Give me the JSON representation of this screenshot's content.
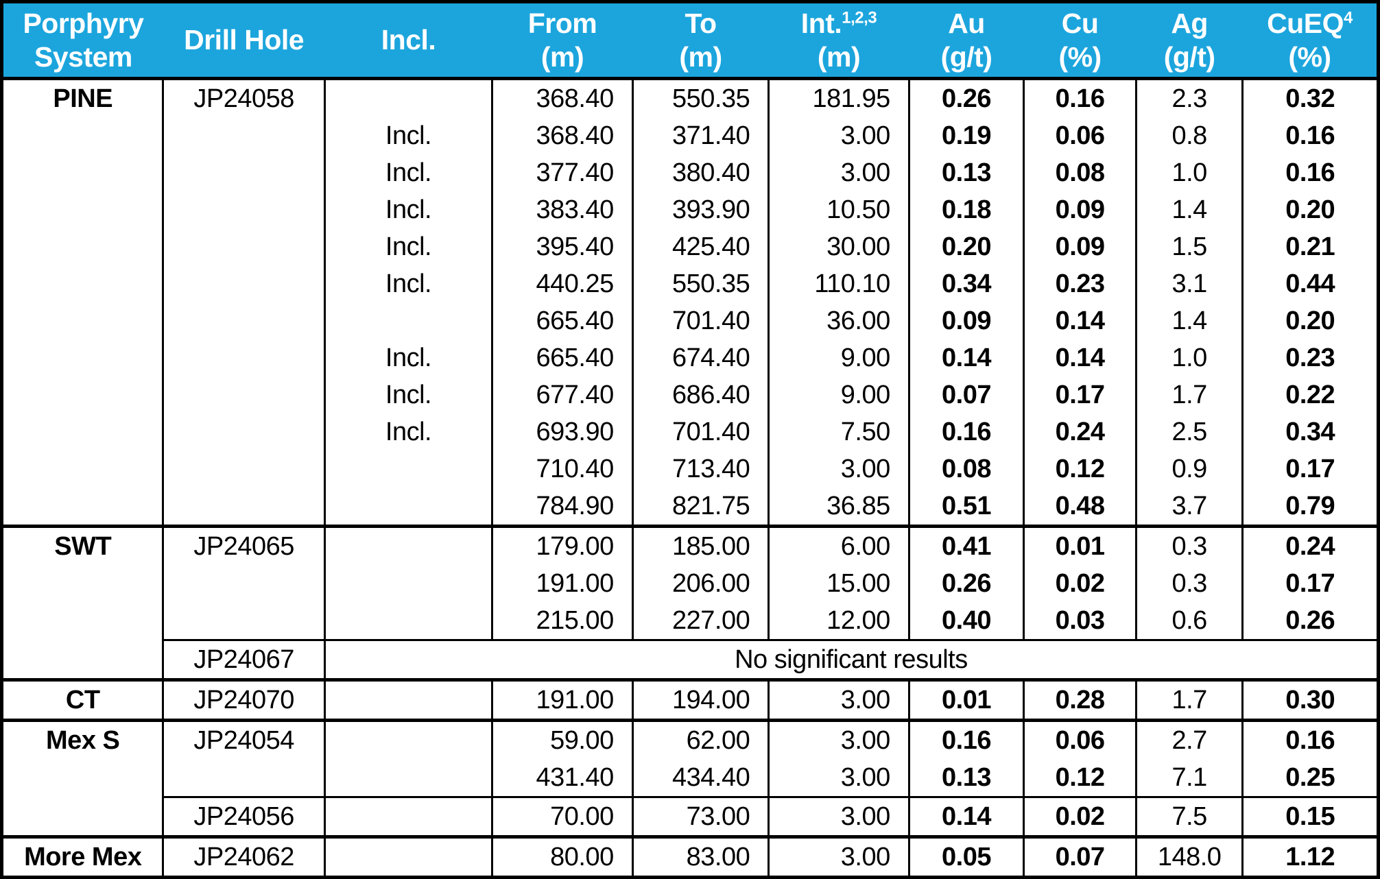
{
  "colors": {
    "header_bg": "#1CA5DD",
    "header_text": "#FFFFFF",
    "border": "#000000",
    "body_bg": "#FFFFFF",
    "body_text": "#000000"
  },
  "table": {
    "header": {
      "columns": [
        {
          "key": "system",
          "line1": "Porphyry",
          "line2": "System"
        },
        {
          "key": "hole",
          "line1": "Drill Hole"
        },
        {
          "key": "incl",
          "line1": "Incl."
        },
        {
          "key": "from",
          "line1": "From",
          "line2": "(m)"
        },
        {
          "key": "to",
          "line1": "To",
          "line2": "(m)"
        },
        {
          "key": "int",
          "line1": "Int.",
          "sup": "1,2,3",
          "line2": "(m)"
        },
        {
          "key": "au",
          "line1": "Au",
          "line2": "(g/t)"
        },
        {
          "key": "cu",
          "line1": "Cu",
          "line2": "(%)"
        },
        {
          "key": "ag",
          "line1": "Ag",
          "line2": "(g/t)"
        },
        {
          "key": "cueq",
          "line1": "CuEQ",
          "sup": "4",
          "line2": "(%)"
        }
      ]
    },
    "sections": [
      {
        "system": "PINE",
        "holes": [
          {
            "hole": "JP24058",
            "intervals": [
              {
                "incl": "",
                "from": "368.40",
                "to": "550.35",
                "int": "181.95",
                "au": "0.26",
                "cu": "0.16",
                "ag": "2.3",
                "cueq": "0.32"
              },
              {
                "incl": "Incl.",
                "from": "368.40",
                "to": "371.40",
                "int": "3.00",
                "au": "0.19",
                "cu": "0.06",
                "ag": "0.8",
                "cueq": "0.16"
              },
              {
                "incl": "Incl.",
                "from": "377.40",
                "to": "380.40",
                "int": "3.00",
                "au": "0.13",
                "cu": "0.08",
                "ag": "1.0",
                "cueq": "0.16"
              },
              {
                "incl": "Incl.",
                "from": "383.40",
                "to": "393.90",
                "int": "10.50",
                "au": "0.18",
                "cu": "0.09",
                "ag": "1.4",
                "cueq": "0.20"
              },
              {
                "incl": "Incl.",
                "from": "395.40",
                "to": "425.40",
                "int": "30.00",
                "au": "0.20",
                "cu": "0.09",
                "ag": "1.5",
                "cueq": "0.21"
              },
              {
                "incl": "Incl.",
                "from": "440.25",
                "to": "550.35",
                "int": "110.10",
                "au": "0.34",
                "cu": "0.23",
                "ag": "3.1",
                "cueq": "0.44"
              },
              {
                "incl": "",
                "from": "665.40",
                "to": "701.40",
                "int": "36.00",
                "au": "0.09",
                "cu": "0.14",
                "ag": "1.4",
                "cueq": "0.20"
              },
              {
                "incl": "Incl.",
                "from": "665.40",
                "to": "674.40",
                "int": "9.00",
                "au": "0.14",
                "cu": "0.14",
                "ag": "1.0",
                "cueq": "0.23"
              },
              {
                "incl": "Incl.",
                "from": "677.40",
                "to": "686.40",
                "int": "9.00",
                "au": "0.07",
                "cu": "0.17",
                "ag": "1.7",
                "cueq": "0.22"
              },
              {
                "incl": "Incl.",
                "from": "693.90",
                "to": "701.40",
                "int": "7.50",
                "au": "0.16",
                "cu": "0.24",
                "ag": "2.5",
                "cueq": "0.34"
              },
              {
                "incl": "",
                "from": "710.40",
                "to": "713.40",
                "int": "3.00",
                "au": "0.08",
                "cu": "0.12",
                "ag": "0.9",
                "cueq": "0.17"
              },
              {
                "incl": "",
                "from": "784.90",
                "to": "821.75",
                "int": "36.85",
                "au": "0.51",
                "cu": "0.48",
                "ag": "3.7",
                "cueq": "0.79"
              }
            ]
          }
        ]
      },
      {
        "system": "SWT",
        "holes": [
          {
            "hole": "JP24065",
            "intervals": [
              {
                "incl": "",
                "from": "179.00",
                "to": "185.00",
                "int": "6.00",
                "au": "0.41",
                "cu": "0.01",
                "ag": "0.3",
                "cueq": "0.24"
              },
              {
                "incl": "",
                "from": "191.00",
                "to": "206.00",
                "int": "15.00",
                "au": "0.26",
                "cu": "0.02",
                "ag": "0.3",
                "cueq": "0.17"
              },
              {
                "incl": "",
                "from": "215.00",
                "to": "227.00",
                "int": "12.00",
                "au": "0.40",
                "cu": "0.03",
                "ag": "0.6",
                "cueq": "0.26"
              }
            ]
          },
          {
            "hole": "JP24067",
            "note": "No significant results"
          }
        ]
      },
      {
        "system": "CT",
        "holes": [
          {
            "hole": "JP24070",
            "intervals": [
              {
                "incl": "",
                "from": "191.00",
                "to": "194.00",
                "int": "3.00",
                "au": "0.01",
                "cu": "0.28",
                "ag": "1.7",
                "cueq": "0.30"
              }
            ]
          }
        ]
      },
      {
        "system": "Mex S",
        "holes": [
          {
            "hole": "JP24054",
            "intervals": [
              {
                "incl": "",
                "from": "59.00",
                "to": "62.00",
                "int": "3.00",
                "au": "0.16",
                "cu": "0.06",
                "ag": "2.7",
                "cueq": "0.16"
              },
              {
                "incl": "",
                "from": "431.40",
                "to": "434.40",
                "int": "3.00",
                "au": "0.13",
                "cu": "0.12",
                "ag": "7.1",
                "cueq": "0.25"
              }
            ]
          },
          {
            "hole": "JP24056",
            "intervals": [
              {
                "incl": "",
                "from": "70.00",
                "to": "73.00",
                "int": "3.00",
                "au": "0.14",
                "cu": "0.02",
                "ag": "7.5",
                "cueq": "0.15"
              }
            ]
          }
        ]
      },
      {
        "system": "More Mex",
        "holes": [
          {
            "hole": "JP24062",
            "intervals": [
              {
                "incl": "",
                "from": "80.00",
                "to": "83.00",
                "int": "3.00",
                "au": "0.05",
                "cu": "0.07",
                "ag": "148.0",
                "cueq": "1.12"
              }
            ]
          }
        ]
      }
    ]
  }
}
